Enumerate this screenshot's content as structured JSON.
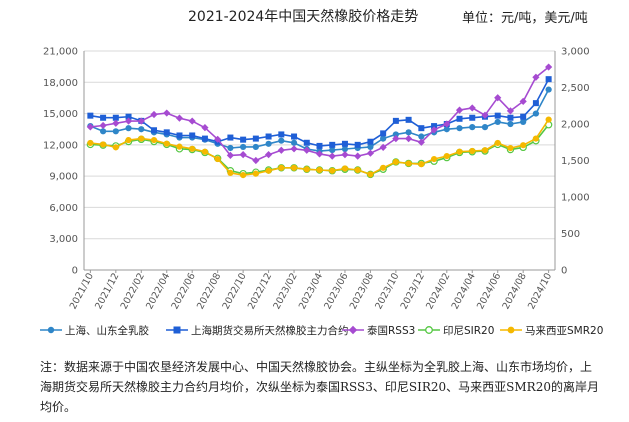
{
  "title": "2021-2024年中国天然橡胶价格走势",
  "unit": "单位：元/吨，美元/吨",
  "footnote": "注：数据来源于中国农垦经济发展中心、中国天然橡胶协会。主纵坐标为全乳胶上海、山东市场均价，上海期货交易所天然橡胶主力合约月均价，次纵坐标为泰国RSS3、印尼SIR20、马来西亚SMR20的离岸月均价。",
  "chart_data": {
    "type": "line",
    "x": [
      "2021/10",
      "2021/11",
      "2021/12",
      "2022/01",
      "2022/02",
      "2022/03",
      "2022/04",
      "2022/05",
      "2022/06",
      "2022/07",
      "2022/08",
      "2022/09",
      "2022/10",
      "2022/11",
      "2022/12",
      "2023/01",
      "2023/02",
      "2023/03",
      "2023/04",
      "2023/05",
      "2023/06",
      "2023/07",
      "2023/08",
      "2023/09",
      "2023/10",
      "2023/11",
      "2023/12",
      "2024/01",
      "2024/02",
      "2024/03",
      "2024/04",
      "2024/05",
      "2024/06",
      "2024/07",
      "2024/08",
      "2024/09",
      "2024/10"
    ],
    "x_tick_labels": [
      "2021/10",
      "2021/12",
      "2022/02",
      "2022/04",
      "2022/06",
      "2022/08",
      "2022/10",
      "2022/12",
      "2023/02",
      "2023/04",
      "2023/06",
      "2023/08",
      "2023/10",
      "2023/12",
      "2024/02",
      "2024/04",
      "2024/06",
      "2024/08",
      "2024/10"
    ],
    "y_left": {
      "min": 0,
      "max": 21000,
      "ticks": [
        0,
        3000,
        6000,
        9000,
        12000,
        15000,
        18000,
        21000
      ],
      "tick_labels": [
        "0",
        "3,000",
        "6,000",
        "9,000",
        "12,000",
        "15,000",
        "18,000",
        "21,000"
      ]
    },
    "y_right": {
      "min": 0,
      "max": 3000,
      "ticks": [
        0,
        500,
        1000,
        1500,
        2000,
        2500,
        3000
      ],
      "tick_labels": [
        "0",
        "500",
        "1,000",
        "1,500",
        "2,000",
        "2,500",
        "3,000"
      ]
    },
    "grid": true,
    "legend_position": "bottom",
    "series": [
      {
        "name": "上海、山东全乳胶",
        "axis": "left",
        "marker": "circle",
        "color": "#2f86c8",
        "values": [
          13800,
          13300,
          13300,
          13600,
          13500,
          13200,
          13000,
          12700,
          12700,
          12500,
          12100,
          11700,
          11800,
          11800,
          12100,
          12400,
          12200,
          11600,
          11400,
          11500,
          11600,
          11700,
          11800,
          12600,
          13000,
          13200,
          12800,
          13200,
          13500,
          13600,
          13700,
          13700,
          14200,
          14000,
          14200,
          15000,
          17300
        ]
      },
      {
        "name": "上海期货交易所天然橡胶主力合约",
        "axis": "left",
        "marker": "square",
        "color": "#1f5fd6",
        "values": [
          14800,
          14600,
          14600,
          14700,
          14300,
          13400,
          13200,
          12900,
          12900,
          12600,
          12300,
          12700,
          12500,
          12600,
          12800,
          13000,
          12800,
          12200,
          11900,
          12000,
          12100,
          12000,
          12300,
          13100,
          14300,
          14400,
          13600,
          13800,
          14000,
          14500,
          14600,
          14700,
          14800,
          14600,
          14700,
          16000,
          18300
        ]
      },
      {
        "name": "泰国RSS3",
        "axis": "right",
        "marker": "diamond",
        "color": "#a64bd1",
        "values": [
          1960,
          1980,
          2010,
          2040,
          2040,
          2130,
          2150,
          2080,
          2040,
          1950,
          1790,
          1570,
          1580,
          1500,
          1580,
          1640,
          1660,
          1640,
          1590,
          1560,
          1580,
          1560,
          1600,
          1680,
          1800,
          1800,
          1750,
          1920,
          2000,
          2190,
          2220,
          2120,
          2360,
          2180,
          2310,
          2640,
          2780
        ]
      },
      {
        "name": "印尼SIR20",
        "axis": "right",
        "marker": "open-circle",
        "color": "#55c743",
        "values": [
          1720,
          1710,
          1700,
          1760,
          1790,
          1760,
          1720,
          1660,
          1650,
          1610,
          1530,
          1360,
          1320,
          1340,
          1370,
          1400,
          1400,
          1380,
          1370,
          1360,
          1380,
          1370,
          1310,
          1380,
          1480,
          1460,
          1460,
          1490,
          1540,
          1610,
          1620,
          1630,
          1720,
          1650,
          1680,
          1770,
          1990
        ]
      },
      {
        "name": "马来西亚SMR20",
        "axis": "right",
        "marker": "circle",
        "color": "#f5b800",
        "values": [
          1740,
          1720,
          1680,
          1780,
          1800,
          1780,
          1730,
          1690,
          1660,
          1620,
          1520,
          1330,
          1300,
          1320,
          1360,
          1400,
          1400,
          1380,
          1370,
          1360,
          1390,
          1370,
          1310,
          1400,
          1480,
          1460,
          1450,
          1520,
          1560,
          1620,
          1630,
          1640,
          1740,
          1670,
          1710,
          1800,
          2060
        ]
      }
    ]
  }
}
